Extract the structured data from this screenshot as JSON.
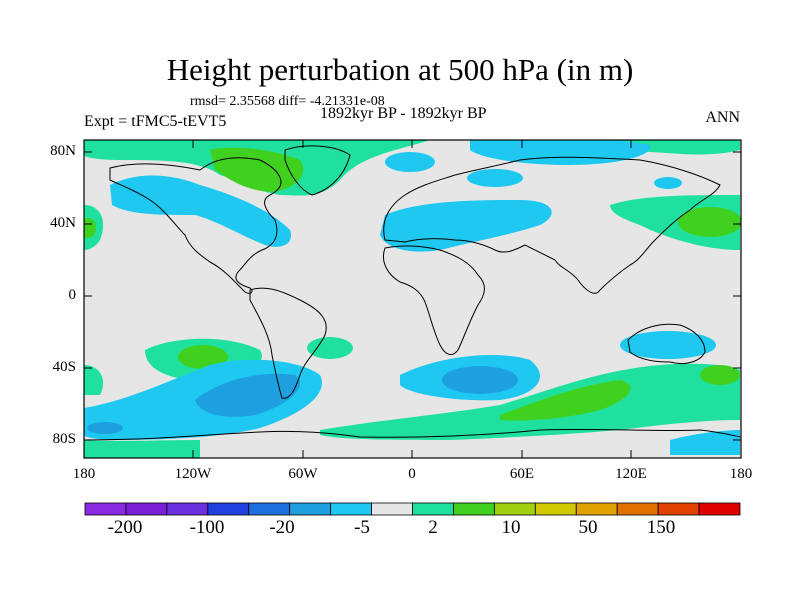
{
  "title": "Height perturbation at 500 hPa (in m)",
  "stats": "rmsd= 2.35568 diff= -4.21331e-08",
  "period": "1892kyr BP - 1892kyr BP",
  "experiment": "Expt = tFMC5-tEVT5",
  "season": "ANN",
  "lat_labels": [
    "80N",
    "40N",
    "0",
    "40S",
    "80S"
  ],
  "lon_labels": [
    "180",
    "120W",
    "60W",
    "0",
    "60E",
    "120E",
    "180"
  ],
  "colorbar": {
    "labels": [
      "-200",
      "-100",
      "-20",
      "-5",
      "2",
      "10",
      "50",
      "150"
    ],
    "colors": [
      "#8a2be2",
      "#7a1fd6",
      "#6a30e0",
      "#2040e0",
      "#1e6fe0",
      "#1ea0e0",
      "#1ec8f0",
      "#e6e6e6",
      "#20e0a0",
      "#40d020",
      "#a0d010",
      "#d0c800",
      "#e0a000",
      "#e07000",
      "#e04000",
      "#e00000"
    ]
  },
  "map_colors": {
    "background": "#e6e6e6",
    "neg_light": "#1ec8f0",
    "neg_mid": "#1ea0e0",
    "pos_light": "#20e0a0",
    "pos_mid": "#40d020",
    "coast": "#000000"
  }
}
